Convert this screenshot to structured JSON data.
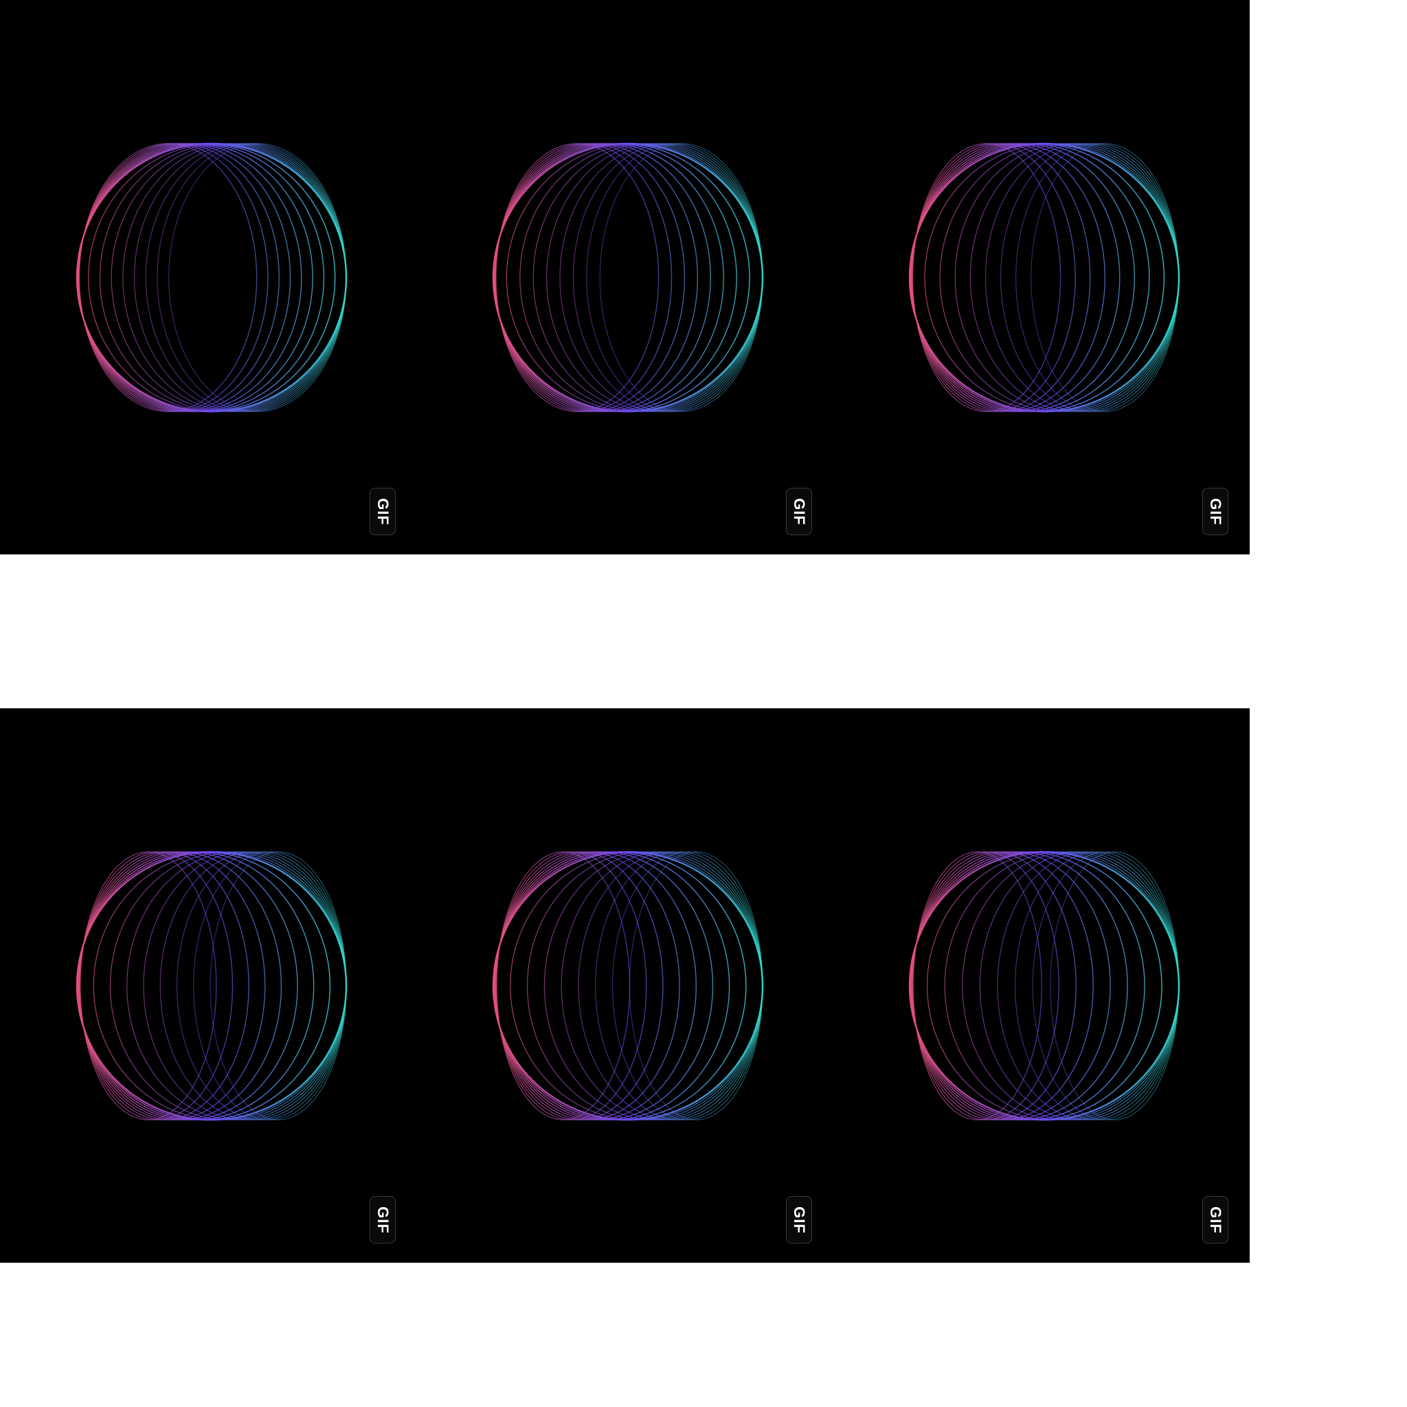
{
  "badge_label": "GIF",
  "palette": {
    "background": "#000000",
    "page": "#ffffff",
    "ring_left": "#e8507a",
    "ring_mid": "#6a4cf0",
    "ring_right": "#2fd8c8"
  },
  "strips": [
    {
      "tiles": [
        {
          "badge": "GIF",
          "icon": "loading-rings-icon"
        },
        {
          "badge": "GIF",
          "icon": "loading-rings-icon"
        },
        {
          "badge": "GIF",
          "icon": "loading-rings-icon"
        }
      ]
    },
    {
      "tiles": [
        {
          "badge": "GIF",
          "icon": "loading-rings-icon"
        },
        {
          "badge": "GIF",
          "icon": "loading-rings-icon"
        },
        {
          "badge": "GIF",
          "icon": "loading-rings-icon"
        }
      ]
    }
  ]
}
